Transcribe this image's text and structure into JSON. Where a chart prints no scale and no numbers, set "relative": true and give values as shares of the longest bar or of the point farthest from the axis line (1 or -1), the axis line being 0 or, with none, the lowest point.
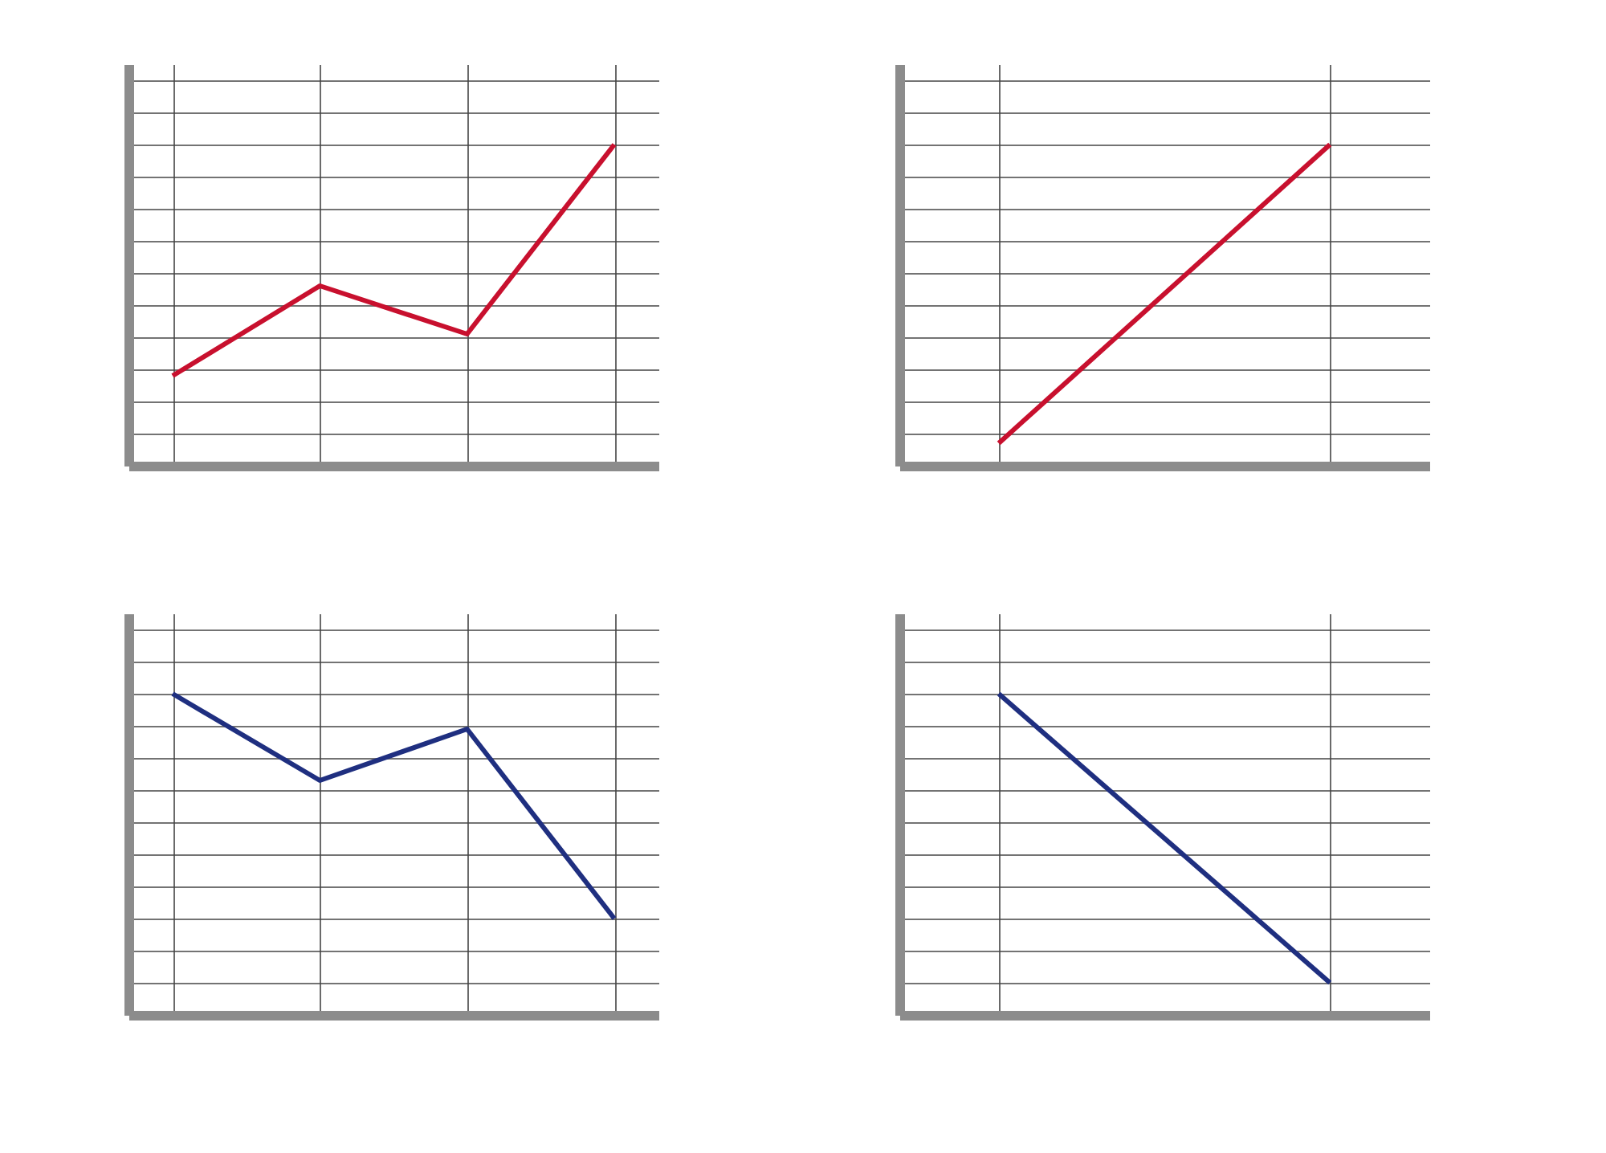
{
  "chart_data": [
    {
      "type": "line",
      "relative": true,
      "categories": [
        null,
        null,
        null,
        null
      ],
      "grid": true,
      "marker": "none",
      "series": [
        {
          "color": "#c8102e",
          "values": [
            0.28,
            0.56,
            0.41,
            1
          ]
        }
      ]
    },
    {
      "type": "line",
      "relative": true,
      "categories": [
        null,
        null
      ],
      "grid": true,
      "marker": "none",
      "series": [
        {
          "color": "#c8102e",
          "values": [
            0.07,
            1
          ]
        }
      ]
    },
    {
      "type": "line",
      "relative": true,
      "categories": [
        null,
        null,
        null,
        null
      ],
      "grid": true,
      "marker": "none",
      "series": [
        {
          "color": "#1f2f80",
          "values": [
            1,
            0.73,
            0.89,
            0.3
          ]
        }
      ]
    },
    {
      "type": "line",
      "relative": true,
      "categories": [
        null,
        null
      ],
      "grid": true,
      "marker": "none",
      "series": [
        {
          "color": "#1f2f80",
          "values": [
            1,
            0.1
          ]
        }
      ]
    }
  ]
}
